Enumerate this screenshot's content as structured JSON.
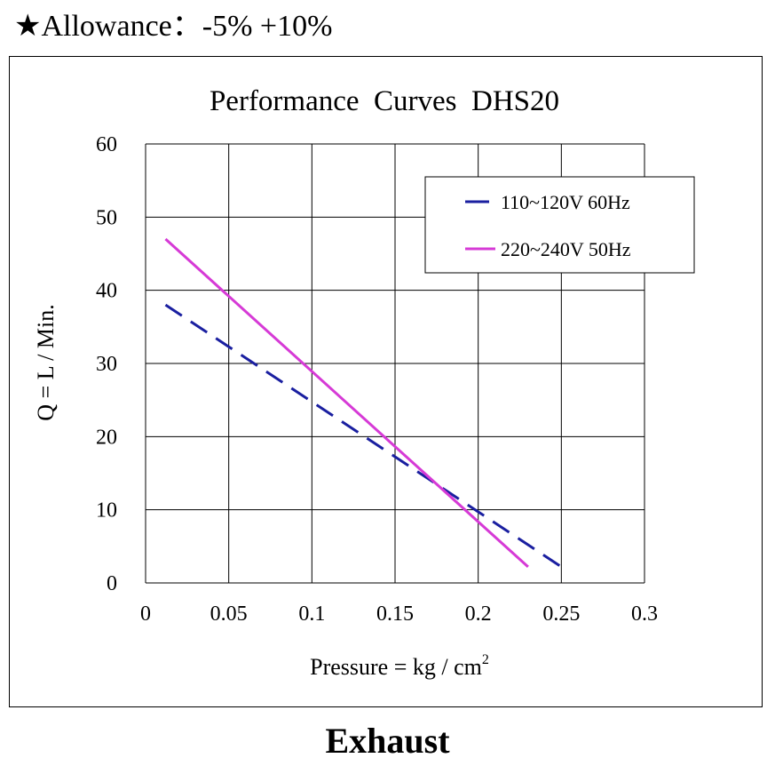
{
  "header": {
    "star": "★",
    "allowance_text": "Allowance：-5% +10%"
  },
  "footer": {
    "label": "Exhaust"
  },
  "colors": {
    "series_110": "#1a1fa0",
    "series_220": "#d63ad6",
    "grid": "#000000"
  },
  "chart_data": {
    "type": "line",
    "title": "Performance  Curves  DHS20",
    "xlabel": "Pressure = kg / cm",
    "xlabel_sup": "2",
    "ylabel": "Q = L / Min.",
    "xlim": [
      0,
      0.3
    ],
    "ylim": [
      0,
      60
    ],
    "x_ticks": [
      0,
      0.05,
      0.1,
      0.15,
      0.2,
      0.25,
      0.3
    ],
    "x_tick_labels": [
      "0",
      "0.05",
      "0.1",
      "0.15",
      "0.2",
      "0.25",
      "0.3"
    ],
    "y_ticks": [
      0,
      10,
      20,
      30,
      40,
      50,
      60
    ],
    "y_tick_labels": [
      "0",
      "10",
      "20",
      "30",
      "40",
      "50",
      "60"
    ],
    "grid": true,
    "legend_position": "top-right",
    "series": [
      {
        "name": "110~120V 60Hz",
        "style": "dashed",
        "color": "#1a1fa0",
        "x": [
          0.012,
          0.25
        ],
        "y": [
          38,
          2.2
        ]
      },
      {
        "name": "220~240V 50Hz",
        "style": "solid",
        "color": "#d63ad6",
        "x": [
          0.012,
          0.23
        ],
        "y": [
          47,
          2.2
        ]
      }
    ]
  }
}
